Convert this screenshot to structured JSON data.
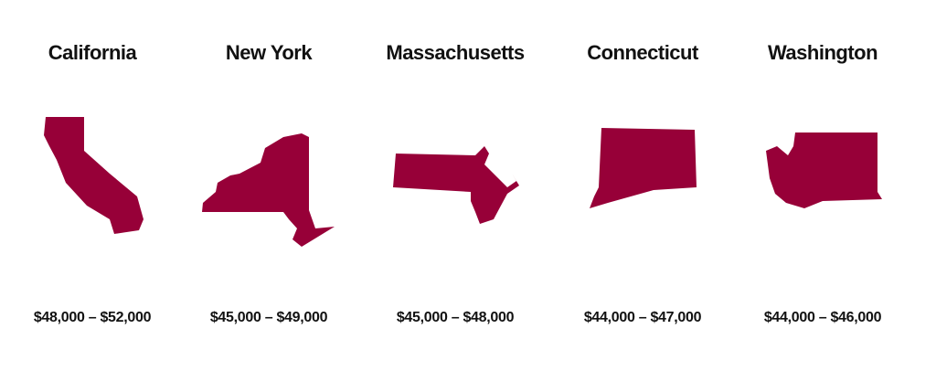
{
  "states": [
    {
      "name": "California",
      "range": "$48,000 – $52,000"
    },
    {
      "name": "New York",
      "range": "$45,000 – $49,000"
    },
    {
      "name": "Massachusetts",
      "range": "$45,000 – $48,000"
    },
    {
      "name": "Connecticut",
      "range": "$44,000 – $47,000"
    },
    {
      "name": "Washington",
      "range": "$44,000 – $46,000"
    }
  ]
}
